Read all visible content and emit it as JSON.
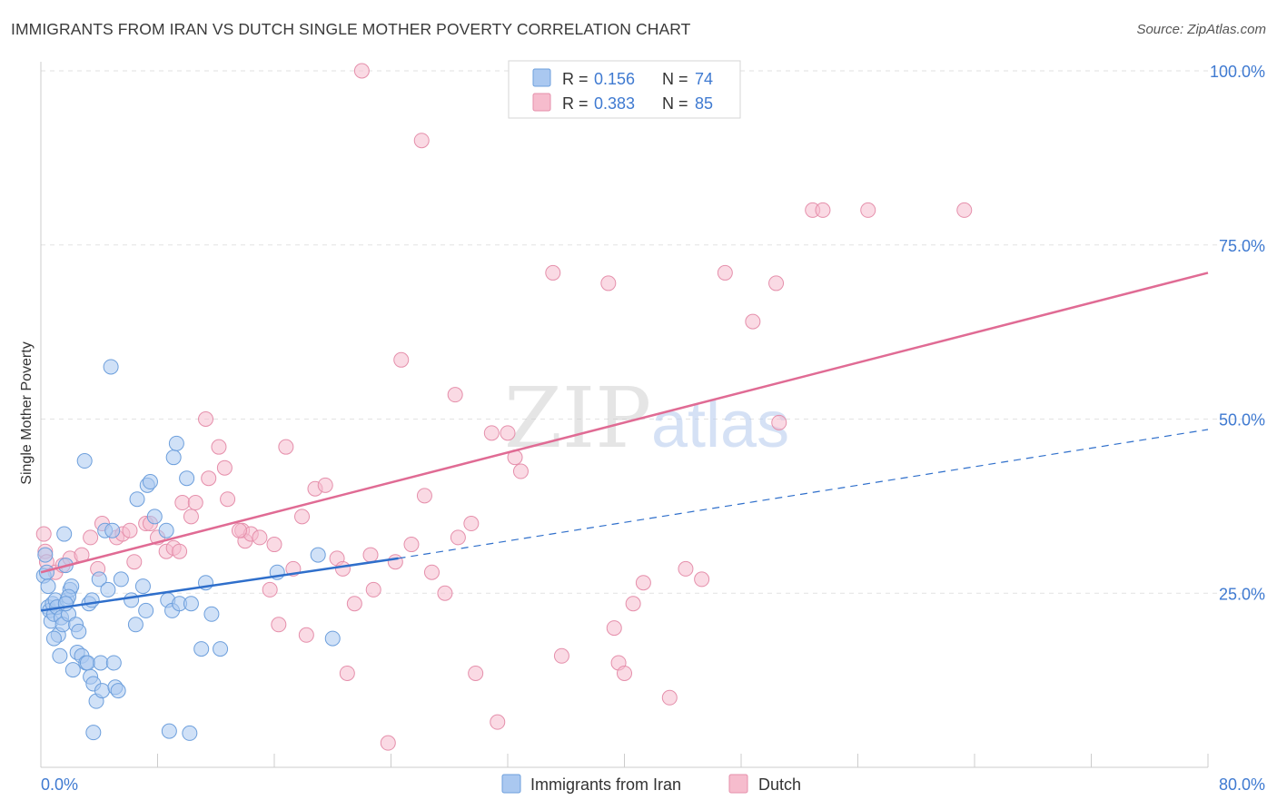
{
  "header": {
    "title": "IMMIGRANTS FROM IRAN VS DUTCH SINGLE MOTHER POVERTY CORRELATION CHART",
    "source": "Source: ZipAtlas.com"
  },
  "legend": {
    "rows": [
      {
        "r_label": "R =",
        "r_value": "0.156",
        "n_label": "N =",
        "n_value": "74"
      },
      {
        "r_label": "R =",
        "r_value": "0.383",
        "n_label": "N =",
        "n_value": "85"
      }
    ]
  },
  "watermark": {
    "zip": "ZIP",
    "atlas": "atlas"
  },
  "bottom_legend": {
    "iran": "Immigrants from Iran",
    "dutch": "Dutch"
  },
  "colors": {
    "iran_fill": "#aac8f0",
    "iran_stroke": "#6d9fdc",
    "iran_line": "#2f6fcb",
    "dutch_fill": "#f6bccd",
    "dutch_stroke": "#e58fab",
    "dutch_line": "#e06b94",
    "tick_label": "#3f7ad1",
    "grid": "#e2e2e2"
  },
  "chart_data": {
    "type": "scatter",
    "title": "IMMIGRANTS FROM IRAN VS DUTCH SINGLE MOTHER POVERTY CORRELATION CHART",
    "xlabel": "",
    "ylabel": "Single Mother Poverty",
    "xlim": [
      0,
      80
    ],
    "ylim": [
      0,
      100
    ],
    "x_tick_labels": [
      "0.0%",
      "80.0%"
    ],
    "y_tick_labels": [
      "25.0%",
      "50.0%",
      "75.0%",
      "100.0%"
    ],
    "y_ticks": [
      25,
      50,
      75,
      100
    ],
    "grid": true,
    "legend_position": "top-center",
    "series": [
      {
        "name": "Immigrants from Iran",
        "r": 0.156,
        "n": 74,
        "trend": {
          "x0": 0,
          "y0": 22.5,
          "x1": 24.5,
          "y1": 30.0,
          "dash_x1": 80,
          "dash_y1": 48.5
        },
        "points": [
          [
            0.2,
            27.5
          ],
          [
            0.3,
            30.5
          ],
          [
            0.4,
            28.0
          ],
          [
            0.5,
            23.0
          ],
          [
            0.6,
            22.5
          ],
          [
            0.7,
            21.0
          ],
          [
            0.8,
            23.5
          ],
          [
            0.9,
            22.0
          ],
          [
            1.0,
            24.0
          ],
          [
            1.1,
            23.0
          ],
          [
            1.2,
            19.0
          ],
          [
            1.3,
            16.0
          ],
          [
            1.4,
            21.5
          ],
          [
            1.5,
            20.5
          ],
          [
            1.6,
            33.5
          ],
          [
            1.7,
            29.0
          ],
          [
            1.8,
            24.0
          ],
          [
            1.9,
            22.0
          ],
          [
            2.0,
            25.5
          ],
          [
            2.2,
            14.0
          ],
          [
            2.4,
            20.5
          ],
          [
            2.5,
            16.5
          ],
          [
            2.6,
            19.5
          ],
          [
            2.8,
            16.0
          ],
          [
            3.0,
            44.0
          ],
          [
            3.1,
            15.0
          ],
          [
            3.2,
            15.0
          ],
          [
            3.3,
            23.5
          ],
          [
            3.4,
            13.0
          ],
          [
            3.5,
            24.0
          ],
          [
            3.6,
            12.0
          ],
          [
            3.8,
            9.5
          ],
          [
            4.0,
            27.0
          ],
          [
            4.1,
            15.0
          ],
          [
            4.2,
            11.0
          ],
          [
            4.4,
            34.0
          ],
          [
            4.6,
            25.5
          ],
          [
            4.8,
            57.5
          ],
          [
            5.0,
            15.0
          ],
          [
            5.1,
            11.5
          ],
          [
            5.3,
            11.0
          ],
          [
            5.5,
            27.0
          ],
          [
            6.2,
            24.0
          ],
          [
            6.5,
            20.5
          ],
          [
            6.6,
            38.5
          ],
          [
            7.2,
            22.5
          ],
          [
            7.3,
            40.5
          ],
          [
            7.5,
            41.0
          ],
          [
            7.8,
            36.0
          ],
          [
            8.6,
            34.0
          ],
          [
            8.7,
            24.0
          ],
          [
            9.0,
            22.5
          ],
          [
            9.1,
            44.5
          ],
          [
            9.3,
            46.5
          ],
          [
            9.5,
            23.5
          ],
          [
            10.0,
            41.5
          ],
          [
            10.3,
            23.5
          ],
          [
            11.0,
            17.0
          ],
          [
            11.3,
            26.5
          ],
          [
            11.7,
            22.0
          ],
          [
            12.3,
            17.0
          ],
          [
            16.2,
            28.0
          ],
          [
            19.0,
            30.5
          ],
          [
            20.0,
            18.5
          ],
          [
            3.6,
            5.0
          ],
          [
            8.8,
            5.2
          ],
          [
            10.2,
            4.9
          ],
          [
            4.9,
            34.0
          ],
          [
            7.0,
            26.0
          ],
          [
            2.1,
            26.0
          ],
          [
            0.9,
            18.5
          ],
          [
            1.9,
            24.5
          ],
          [
            0.5,
            26.0
          ],
          [
            1.7,
            23.5
          ]
        ]
      },
      {
        "name": "Dutch",
        "r": 0.383,
        "n": 85,
        "trend": {
          "x0": 0,
          "y0": 28.0,
          "x1": 80,
          "y1": 71.0
        },
        "points": [
          [
            0.2,
            33.5
          ],
          [
            0.3,
            31.0
          ],
          [
            0.4,
            29.5
          ],
          [
            1.0,
            28.0
          ],
          [
            1.5,
            29.0
          ],
          [
            2.0,
            30.0
          ],
          [
            2.8,
            30.5
          ],
          [
            3.4,
            33.0
          ],
          [
            4.2,
            35.0
          ],
          [
            5.2,
            33.0
          ],
          [
            5.6,
            33.5
          ],
          [
            6.1,
            34.0
          ],
          [
            7.2,
            35.0
          ],
          [
            7.5,
            35.0
          ],
          [
            8.0,
            33.0
          ],
          [
            8.6,
            31.0
          ],
          [
            9.1,
            31.5
          ],
          [
            9.7,
            38.0
          ],
          [
            10.3,
            36.0
          ],
          [
            10.6,
            38.0
          ],
          [
            11.3,
            50.0
          ],
          [
            11.5,
            41.5
          ],
          [
            12.2,
            46.0
          ],
          [
            12.8,
            38.5
          ],
          [
            13.8,
            34.0
          ],
          [
            14.0,
            32.5
          ],
          [
            14.4,
            33.5
          ],
          [
            15.0,
            33.0
          ],
          [
            15.7,
            25.5
          ],
          [
            16.0,
            32.0
          ],
          [
            16.3,
            20.5
          ],
          [
            16.8,
            46.0
          ],
          [
            17.3,
            28.5
          ],
          [
            17.9,
            36.0
          ],
          [
            18.2,
            19.0
          ],
          [
            18.8,
            40.0
          ],
          [
            19.5,
            40.5
          ],
          [
            20.3,
            30.0
          ],
          [
            20.7,
            28.5
          ],
          [
            21.0,
            13.5
          ],
          [
            21.5,
            23.5
          ],
          [
            22.0,
            100.0
          ],
          [
            22.6,
            30.5
          ],
          [
            22.8,
            25.5
          ],
          [
            23.8,
            3.5
          ],
          [
            24.3,
            29.5
          ],
          [
            24.7,
            58.5
          ],
          [
            25.4,
            32.0
          ],
          [
            26.1,
            90.0
          ],
          [
            26.3,
            39.0
          ],
          [
            26.8,
            28.0
          ],
          [
            27.7,
            25.0
          ],
          [
            28.4,
            53.5
          ],
          [
            28.6,
            33.0
          ],
          [
            29.5,
            35.0
          ],
          [
            29.8,
            13.5
          ],
          [
            30.9,
            48.0
          ],
          [
            31.3,
            6.5
          ],
          [
            32.0,
            48.0
          ],
          [
            32.5,
            44.5
          ],
          [
            32.9,
            42.5
          ],
          [
            35.1,
            71.0
          ],
          [
            35.7,
            16.0
          ],
          [
            38.9,
            69.5
          ],
          [
            39.3,
            20.0
          ],
          [
            39.6,
            15.0
          ],
          [
            40.0,
            13.5
          ],
          [
            40.6,
            23.5
          ],
          [
            41.3,
            26.5
          ],
          [
            43.1,
            10.0
          ],
          [
            44.2,
            28.5
          ],
          [
            45.3,
            27.0
          ],
          [
            46.9,
            71.0
          ],
          [
            48.8,
            64.0
          ],
          [
            50.4,
            69.5
          ],
          [
            50.6,
            49.5
          ],
          [
            52.9,
            80.0
          ],
          [
            53.6,
            80.0
          ],
          [
            56.7,
            80.0
          ],
          [
            63.3,
            80.0
          ],
          [
            12.6,
            43.0
          ],
          [
            13.6,
            34.0
          ],
          [
            9.5,
            31.0
          ],
          [
            6.4,
            29.5
          ],
          [
            3.9,
            28.5
          ]
        ]
      }
    ]
  }
}
